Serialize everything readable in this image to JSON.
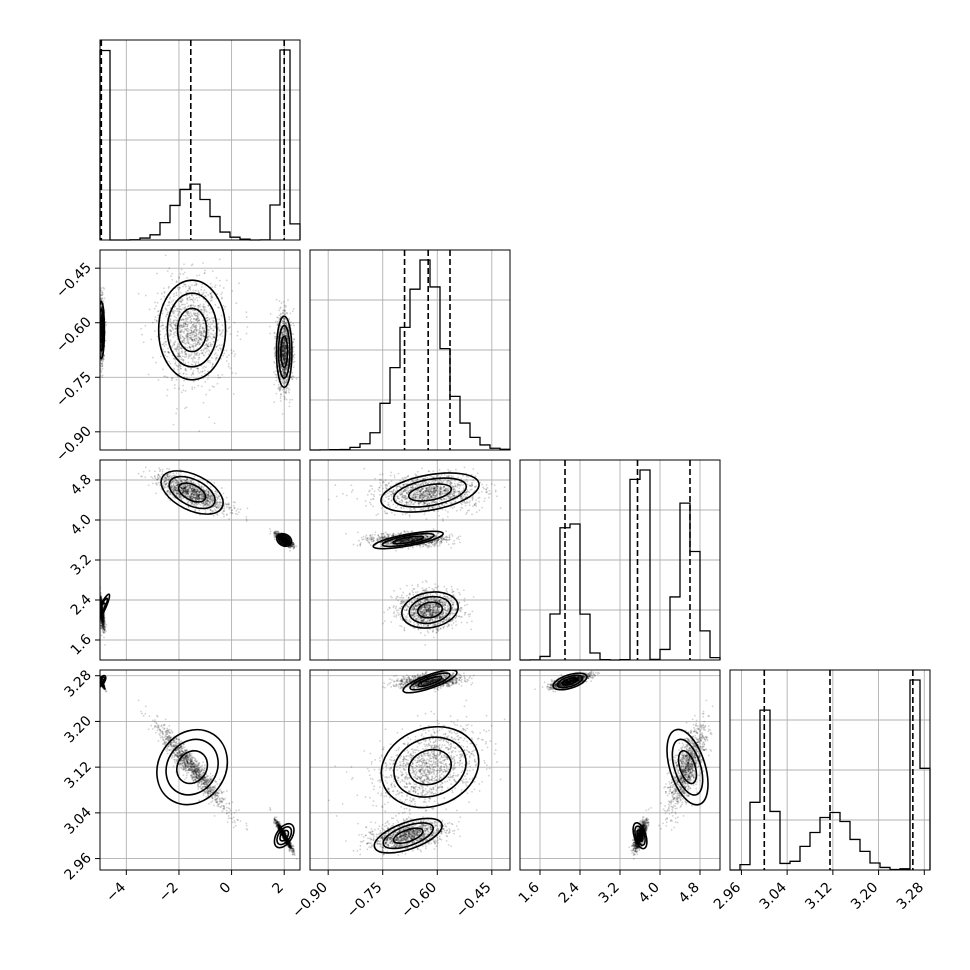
{
  "chart_data": {
    "type": "corner",
    "parameters": [
      {
        "range": [
          -5.0,
          2.6
        ],
        "ticks": [
          -4,
          -2,
          0,
          2
        ],
        "tick_labels": [
          "−4",
          "−2",
          "0",
          "2"
        ],
        "quantiles": [
          -4.95,
          -1.55,
          2.0
        ]
      },
      {
        "range": [
          -0.95,
          -0.4
        ],
        "ticks": [
          -0.9,
          -0.75,
          -0.6,
          -0.45
        ],
        "tick_labels": [
          "−0.90",
          "−0.75",
          "−0.60",
          "−0.45"
        ],
        "quantiles": [
          -0.69,
          -0.625,
          -0.565
        ]
      },
      {
        "range": [
          1.2,
          5.2
        ],
        "ticks": [
          1.6,
          2.4,
          3.2,
          4.0,
          4.8
        ],
        "tick_labels": [
          "1.6",
          "2.4",
          "3.2",
          "4.0",
          "4.8"
        ],
        "quantiles": [
          2.1,
          3.55,
          4.6
        ]
      },
      {
        "range": [
          2.94,
          3.29
        ],
        "ticks": [
          2.96,
          3.04,
          3.12,
          3.2,
          3.28
        ],
        "tick_labels": [
          "2.96",
          "3.04",
          "3.12",
          "3.20",
          "3.28"
        ],
        "quantiles": [
          3.0,
          3.115,
          3.26
        ]
      }
    ],
    "modes": [
      {
        "weight": 0.33,
        "mean": [
          -4.95,
          -0.62,
          2.2,
          3.27
        ],
        "sd": [
          0.06,
          0.04,
          0.18,
          0.006
        ]
      },
      {
        "weight": 0.34,
        "mean": [
          -1.5,
          -0.62,
          4.55,
          3.12
        ],
        "sd": [
          0.65,
          0.07,
          0.18,
          0.035
        ]
      },
      {
        "weight": 0.33,
        "mean": [
          2.0,
          -0.68,
          3.6,
          3.0
        ],
        "sd": [
          0.15,
          0.05,
          0.06,
          0.012
        ]
      }
    ],
    "samples_per_mode": 2500,
    "hist_bins": 20,
    "grid": true,
    "colors": {
      "points": "#000000",
      "lines": "#000000",
      "grid": "#b0b0b0",
      "background": "#ffffff"
    }
  }
}
